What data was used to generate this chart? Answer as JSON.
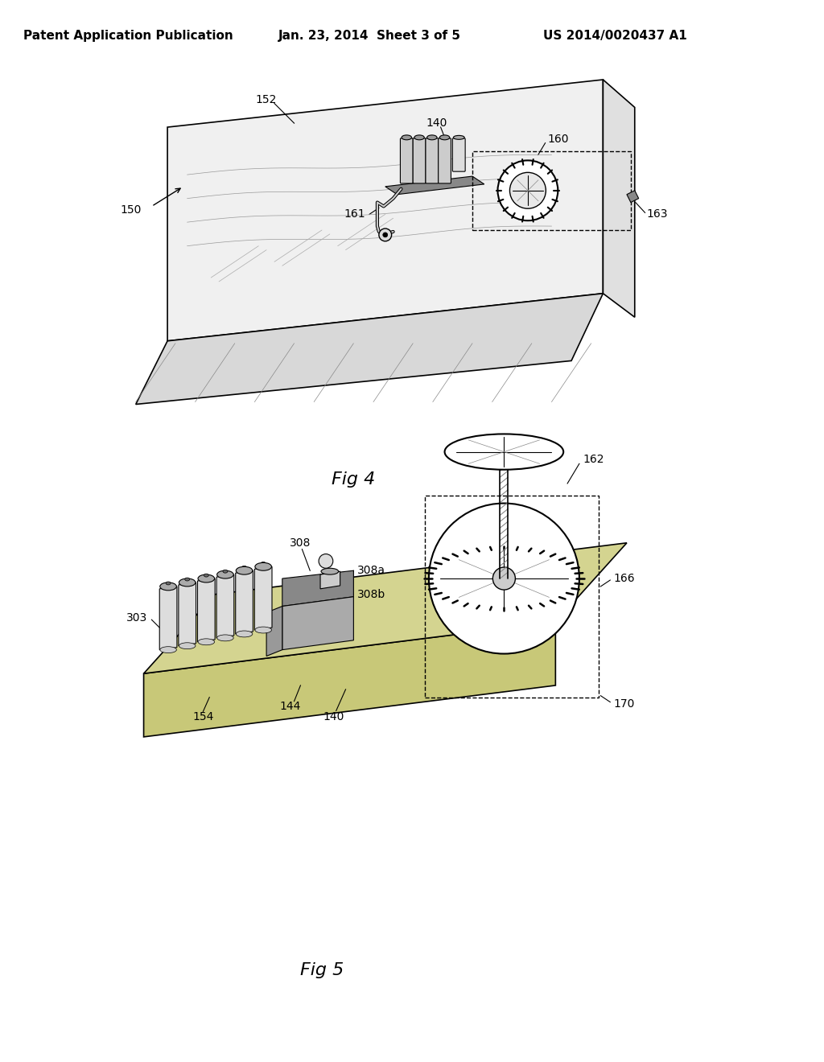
{
  "background_color": "#ffffff",
  "header_text_left": "Patent Application Publication",
  "header_text_center": "Jan. 23, 2014  Sheet 3 of 5",
  "header_text_right": "US 2014/0020437 A1",
  "header_fontsize": 11,
  "fig4_label": "Fig 4",
  "fig5_label": "Fig 5",
  "label_fontsize": 16,
  "ref_fontsize": 10,
  "line_color": "#000000",
  "line_width": 1.2,
  "thin_line": 0.8,
  "thick_line": 2.0
}
